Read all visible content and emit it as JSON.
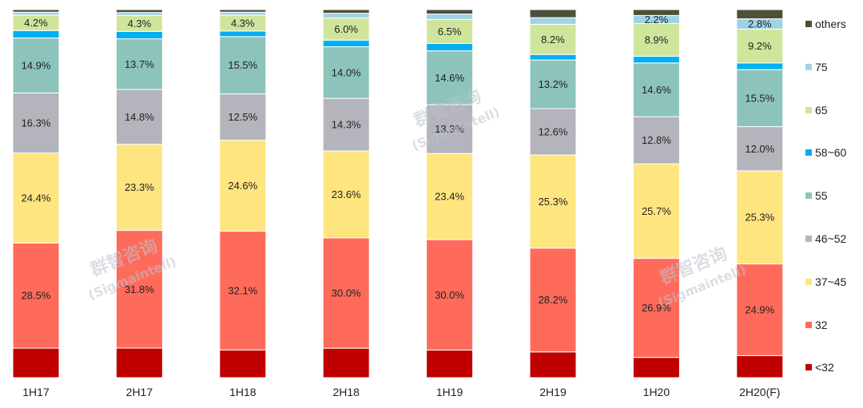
{
  "watermark": {
    "line1": "群智咨询",
    "line2": "(Sigmaintell)"
  },
  "chart_data": {
    "type": "bar",
    "stacked": true,
    "percent_stacked": true,
    "categories": [
      "1H17",
      "2H17",
      "1H18",
      "2H18",
      "1H19",
      "2H19",
      "1H20",
      "2H20(F)"
    ],
    "ylim": [
      0,
      100
    ],
    "legend_position": "right",
    "series": [
      {
        "name": "<32",
        "color": "#c00000",
        "values": [
          8.0,
          8.0,
          7.5,
          8.0,
          7.5,
          7.0,
          5.5,
          6.0
        ]
      },
      {
        "name": "32",
        "color": "#ff6b5b",
        "values": [
          28.5,
          31.8,
          32.1,
          30.0,
          30.0,
          28.2,
          26.9,
          24.9
        ]
      },
      {
        "name": "37~45",
        "color": "#ffe57f",
        "values": [
          24.4,
          23.3,
          24.6,
          23.6,
          23.4,
          25.3,
          25.7,
          25.3
        ]
      },
      {
        "name": "46~52",
        "color": "#b4b4bc",
        "values": [
          16.3,
          14.8,
          12.5,
          14.3,
          13.3,
          12.6,
          12.8,
          12.0
        ]
      },
      {
        "name": "55",
        "color": "#8cc4bc",
        "values": [
          14.9,
          13.7,
          15.5,
          14.0,
          14.6,
          13.2,
          14.6,
          15.5
        ]
      },
      {
        "name": "58~60",
        "color": "#00b0f0",
        "values": [
          2.0,
          2.0,
          1.5,
          1.8,
          2.0,
          1.5,
          1.8,
          1.8
        ]
      },
      {
        "name": "65",
        "color": "#d0e59c",
        "values": [
          4.2,
          4.3,
          4.3,
          6.0,
          6.5,
          8.2,
          8.9,
          9.2
        ]
      },
      {
        "name": "75",
        "color": "#9fd3e6",
        "values": [
          0.8,
          0.8,
          0.8,
          1.3,
          1.5,
          1.8,
          2.2,
          2.8
        ]
      },
      {
        "name": "others",
        "color": "#4f4f3a",
        "values": [
          0.7,
          0.8,
          0.7,
          1.0,
          1.2,
          2.2,
          1.6,
          2.5
        ]
      }
    ],
    "data_labels": {
      "32": [
        "28.5%",
        "31.8%",
        "32.1%",
        "30.0%",
        "30.0%",
        "28.2%",
        "26.9%",
        "24.9%"
      ],
      "37~45": [
        "24.4%",
        "23.3%",
        "24.6%",
        "23.6%",
        "23.4%",
        "25.3%",
        "25.7%",
        "25.3%"
      ],
      "46~52": [
        "16.3%",
        "14.8%",
        "12.5%",
        "14.3%",
        "13.3%",
        "12.6%",
        "12.8%",
        "12.0%"
      ],
      "55": [
        "14.9%",
        "13.7%",
        "15.5%",
        "14.0%",
        "14.6%",
        "13.2%",
        "14.6%",
        "15.5%"
      ],
      "65": [
        "4.2%",
        "4.3%",
        "4.3%",
        "6.0%",
        "6.5%",
        "8.2%",
        "8.9%",
        "9.2%"
      ],
      "75": [
        "",
        "",
        "",
        "",
        "",
        "",
        "2.2%",
        "2.8%"
      ]
    }
  }
}
